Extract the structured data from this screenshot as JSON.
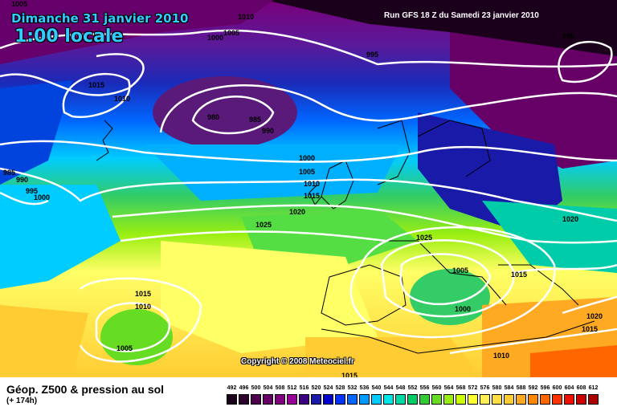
{
  "header": {
    "date": "Dimanche 31 janvier 2010",
    "time": "1:00 locale",
    "run": "Run GFS 18 Z du Samedi 23 janvier 2010"
  },
  "copyright": "Copyright © 2008 Meteociel.fr",
  "footer": {
    "title": "Géop. Z500 & pression au sol",
    "subtitle": "(+ 174h)"
  },
  "isobar_labels": [
    "1005",
    "1010",
    "1005",
    "1000",
    "995",
    "1015",
    "1010",
    "990",
    "980",
    "985",
    "990",
    "985",
    "990",
    "995",
    "1000",
    "1000",
    "1005",
    "1010",
    "1015",
    "1020",
    "1025",
    "1020",
    "1025",
    "1005",
    "1000",
    "1015",
    "1015",
    "1010",
    "1005",
    "1020",
    "1015",
    "1010",
    "1015"
  ],
  "legend": {
    "values": [
      "492",
      "496",
      "500",
      "504",
      "508",
      "512",
      "516",
      "520",
      "524",
      "528",
      "532",
      "536",
      "540",
      "544",
      "548",
      "552",
      "556",
      "560",
      "564",
      "568",
      "572",
      "576",
      "580",
      "584",
      "588",
      "592",
      "596",
      "600",
      "604",
      "608",
      "612"
    ],
    "colors": [
      "#1a001a",
      "#2e002e",
      "#4d004d",
      "#660066",
      "#800080",
      "#990099",
      "#3a0080",
      "#1a1aa8",
      "#0000cc",
      "#0033ff",
      "#0066ff",
      "#0099ff",
      "#00ccff",
      "#00e5e5",
      "#00d9a6",
      "#00cc66",
      "#33cc33",
      "#66dd22",
      "#99ee11",
      "#ccff00",
      "#ffff33",
      "#ffee55",
      "#ffdd44",
      "#ffcc33",
      "#ffaa22",
      "#ff8800",
      "#ff6600",
      "#ff3300",
      "#ee1100",
      "#cc0000",
      "#aa0000"
    ]
  }
}
